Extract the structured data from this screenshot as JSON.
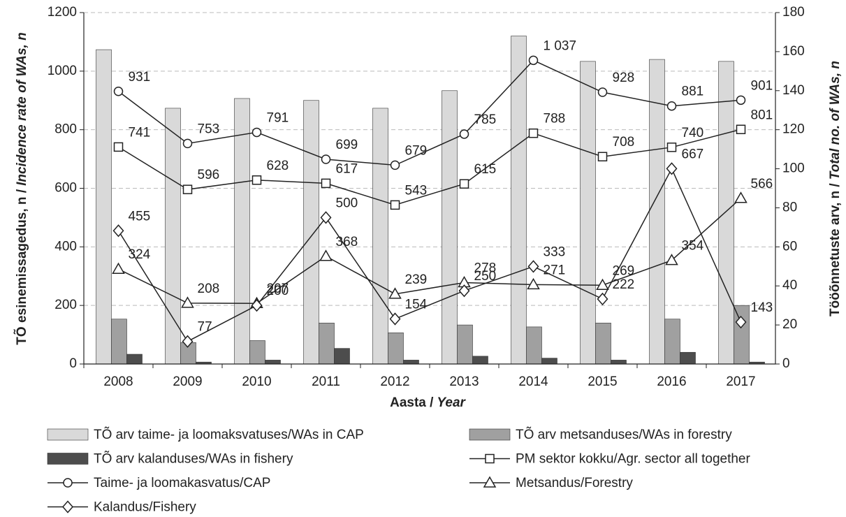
{
  "chart_data": {
    "type": "bar_line",
    "ylabel": [
      "TÕ esinemissagedus, n /",
      "Incidence rate of WAs, n"
    ],
    "y2label": [
      "Tööõnnetuste arv, n /",
      "Total no. of WAs, n"
    ],
    "xlabel": [
      "Aasta /",
      "Year"
    ],
    "categories": [
      "2008",
      "2009",
      "2010",
      "2011",
      "2012",
      "2013",
      "2014",
      "2015",
      "2016",
      "2017"
    ],
    "ylim": [
      0,
      1200
    ],
    "yticks": [
      0,
      200,
      400,
      600,
      800,
      1000,
      1200
    ],
    "y2lim": [
      0,
      180
    ],
    "y2ticks": [
      0,
      20,
      40,
      60,
      80,
      100,
      120,
      140,
      160,
      180
    ],
    "grid": true,
    "series": [
      {
        "name": "TÕ arv taime- ja loomaksvatuses/WAs in CAP",
        "kind": "bar",
        "axis": "y2",
        "color": "#d9d9d9",
        "values": [
          161,
          131,
          136,
          135,
          131,
          140,
          168,
          155,
          156,
          155
        ]
      },
      {
        "name": "TÕ arv metsanduses/WAs in forestry",
        "kind": "bar",
        "axis": "y2",
        "color": "#a0a0a0",
        "values": [
          23,
          11,
          12,
          21,
          16,
          20,
          19,
          21,
          23,
          30
        ]
      },
      {
        "name": "TÕ arv kalanduses/WAs in fishery",
        "kind": "bar",
        "axis": "y2",
        "color": "#4d4d4d",
        "values": [
          5,
          1,
          2,
          8,
          2,
          4,
          3,
          2,
          6,
          1
        ]
      },
      {
        "name": "PM sektor kokku/Agr. sector all together",
        "kind": "line",
        "marker": "square",
        "color": "#222222",
        "values": [
          741,
          596,
          628,
          617,
          543,
          615,
          788,
          708,
          740,
          801
        ]
      },
      {
        "name": "Taime- ja loomakasvatus/CAP",
        "kind": "line",
        "marker": "circle",
        "color": "#222222",
        "values": [
          931,
          753,
          791,
          699,
          679,
          785,
          1037,
          928,
          881,
          901
        ],
        "value_labels": [
          "931",
          "753",
          "791",
          "699",
          "679",
          "785",
          "1 037",
          "928",
          "881",
          "901"
        ]
      },
      {
        "name": "Metsandus/Forestry",
        "kind": "line",
        "marker": "triangle",
        "color": "#222222",
        "values": [
          324,
          208,
          207,
          368,
          239,
          278,
          271,
          269,
          354,
          566
        ]
      },
      {
        "name": "Kalandus/Fishery",
        "kind": "line",
        "marker": "diamond",
        "color": "#222222",
        "values": [
          455,
          77,
          200,
          500,
          154,
          250,
          333,
          222,
          667,
          143
        ]
      }
    ]
  }
}
